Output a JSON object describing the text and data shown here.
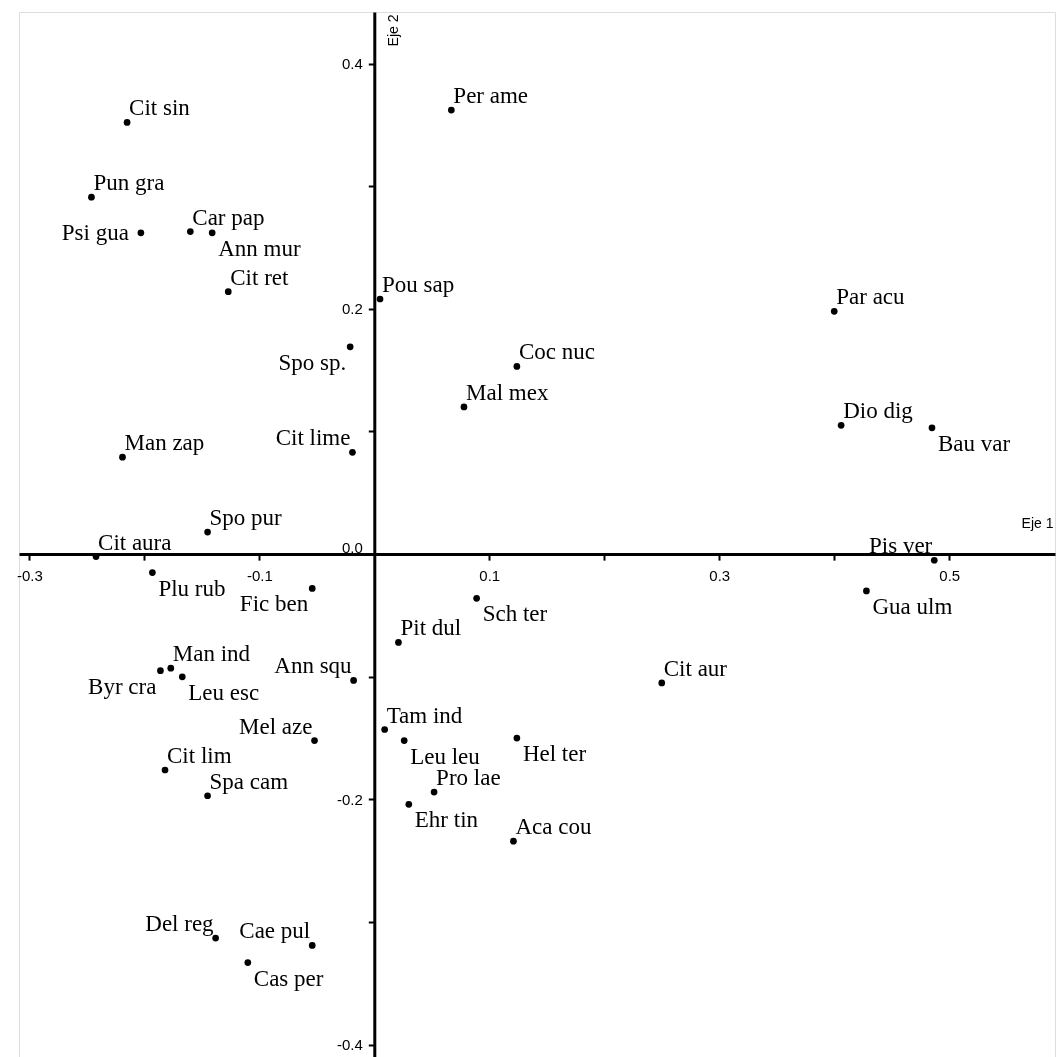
{
  "chart_data": {
    "type": "scatter",
    "xlabel": "Eje 1",
    "ylabel": "Eje 2",
    "xlim": [
      -0.309,
      0.592
    ],
    "ylim": [
      -0.41,
      0.442
    ],
    "xticks": [
      -0.3,
      {
        "value": -0.2,
        "label": null
      },
      -0.1,
      0.1,
      {
        "value": 0.2,
        "label": null
      },
      0.3,
      {
        "value": 0.4,
        "label": null
      },
      0.5
    ],
    "yticks": [
      {
        "value": -0.4,
        "label": "-0.4"
      },
      {
        "value": -0.3,
        "label": null
      },
      {
        "value": -0.2,
        "label": "-0.2"
      },
      {
        "value": -0.1,
        "label": null
      },
      {
        "value": 0.0,
        "label": "0.0"
      },
      {
        "value": 0.1,
        "label": null
      },
      {
        "value": 0.2,
        "label": "0.2"
      },
      {
        "value": 0.3,
        "label": null
      },
      {
        "value": 0.4,
        "label": "0.4"
      }
    ],
    "grid": false,
    "marker": "circle",
    "series": [
      {
        "color": "#000000",
        "x": [
          -0.215,
          -0.246,
          -0.203,
          -0.16,
          -0.141,
          -0.127,
          -0.021,
          0.067,
          0.005,
          0.4,
          0.124,
          0.078,
          0.406,
          0.485,
          -0.219,
          -0.019,
          -0.145,
          -0.242,
          0.487,
          -0.193,
          -0.054,
          0.089,
          0.428,
          0.021,
          -0.177,
          -0.186,
          -0.167,
          -0.018,
          0.25,
          0.009,
          -0.052,
          0.026,
          0.124,
          -0.182,
          -0.145,
          0.052,
          0.03,
          0.121,
          -0.138,
          -0.054,
          -0.11
        ],
        "values": [
          0.352,
          0.291,
          0.262,
          0.263,
          0.262,
          0.214,
          0.169,
          0.362,
          0.208,
          0.198,
          0.153,
          0.12,
          0.105,
          0.103,
          0.079,
          0.083,
          0.018,
          -0.002,
          -0.005,
          -0.015,
          -0.028,
          -0.036,
          -0.03,
          -0.072,
          -0.093,
          -0.095,
          -0.1,
          -0.103,
          -0.105,
          -0.143,
          -0.152,
          -0.152,
          -0.15,
          -0.176,
          -0.197,
          -0.194,
          -0.204,
          -0.234,
          -0.313,
          -0.319,
          -0.333
        ]
      }
    ],
    "annotations": [
      {
        "text": "Cit sin",
        "x": -0.215,
        "y": 0.352
      },
      {
        "text": "Pun gra",
        "x": -0.246,
        "y": 0.291
      },
      {
        "text": "Psi gua",
        "x": -0.203,
        "y": 0.262
      },
      {
        "text": "Car pap",
        "x": -0.16,
        "y": 0.263
      },
      {
        "text": "Ann mur",
        "x": -0.141,
        "y": 0.262
      },
      {
        "text": "Cit ret",
        "x": -0.127,
        "y": 0.214
      },
      {
        "text": "Spo sp.",
        "x": -0.021,
        "y": 0.169
      },
      {
        "text": "Per ame",
        "x": 0.067,
        "y": 0.362
      },
      {
        "text": "Pou sap",
        "x": 0.005,
        "y": 0.208
      },
      {
        "text": "Par acu",
        "x": 0.4,
        "y": 0.198
      },
      {
        "text": "Coc nuc",
        "x": 0.124,
        "y": 0.153
      },
      {
        "text": "Mal mex",
        "x": 0.078,
        "y": 0.12
      },
      {
        "text": "Dio dig",
        "x": 0.406,
        "y": 0.105
      },
      {
        "text": "Bau var",
        "x": 0.485,
        "y": 0.103
      },
      {
        "text": "Man zap",
        "x": -0.219,
        "y": 0.079
      },
      {
        "text": "Cit lime",
        "x": -0.019,
        "y": 0.083
      },
      {
        "text": "Spo pur",
        "x": -0.145,
        "y": 0.018
      },
      {
        "text": "Cit aura",
        "x": -0.242,
        "y": -0.002
      },
      {
        "text": "Pis ver",
        "x": 0.487,
        "y": -0.005
      },
      {
        "text": "Plu rub",
        "x": -0.193,
        "y": -0.015
      },
      {
        "text": "Fic ben",
        "x": -0.054,
        "y": -0.028
      },
      {
        "text": "Sch ter",
        "x": 0.089,
        "y": -0.036
      },
      {
        "text": "Gua ulm",
        "x": 0.428,
        "y": -0.03
      },
      {
        "text": "Pit dul",
        "x": 0.021,
        "y": -0.072
      },
      {
        "text": "Man ind",
        "x": -0.177,
        "y": -0.093
      },
      {
        "text": "Byr cra",
        "x": -0.186,
        "y": -0.095
      },
      {
        "text": "Leu esc",
        "x": -0.167,
        "y": -0.1
      },
      {
        "text": "Ann squ",
        "x": -0.018,
        "y": -0.103
      },
      {
        "text": "Cit aur",
        "x": 0.25,
        "y": -0.105
      },
      {
        "text": "Tam ind",
        "x": 0.009,
        "y": -0.143
      },
      {
        "text": "Mel aze",
        "x": -0.052,
        "y": -0.152
      },
      {
        "text": "Leu leu",
        "x": 0.026,
        "y": -0.152
      },
      {
        "text": "Hel ter",
        "x": 0.124,
        "y": -0.15
      },
      {
        "text": "Cit lim",
        "x": -0.182,
        "y": -0.176
      },
      {
        "text": "Spa cam",
        "x": -0.145,
        "y": -0.197
      },
      {
        "text": "Pro lae",
        "x": 0.052,
        "y": -0.194
      },
      {
        "text": "Ehr tin",
        "x": 0.03,
        "y": -0.204
      },
      {
        "text": "Aca cou",
        "x": 0.121,
        "y": -0.234
      },
      {
        "text": "Del reg",
        "x": -0.138,
        "y": -0.313
      },
      {
        "text": "Cae pul",
        "x": -0.054,
        "y": -0.319
      },
      {
        "text": "Cas per",
        "x": -0.11,
        "y": -0.333
      }
    ]
  }
}
